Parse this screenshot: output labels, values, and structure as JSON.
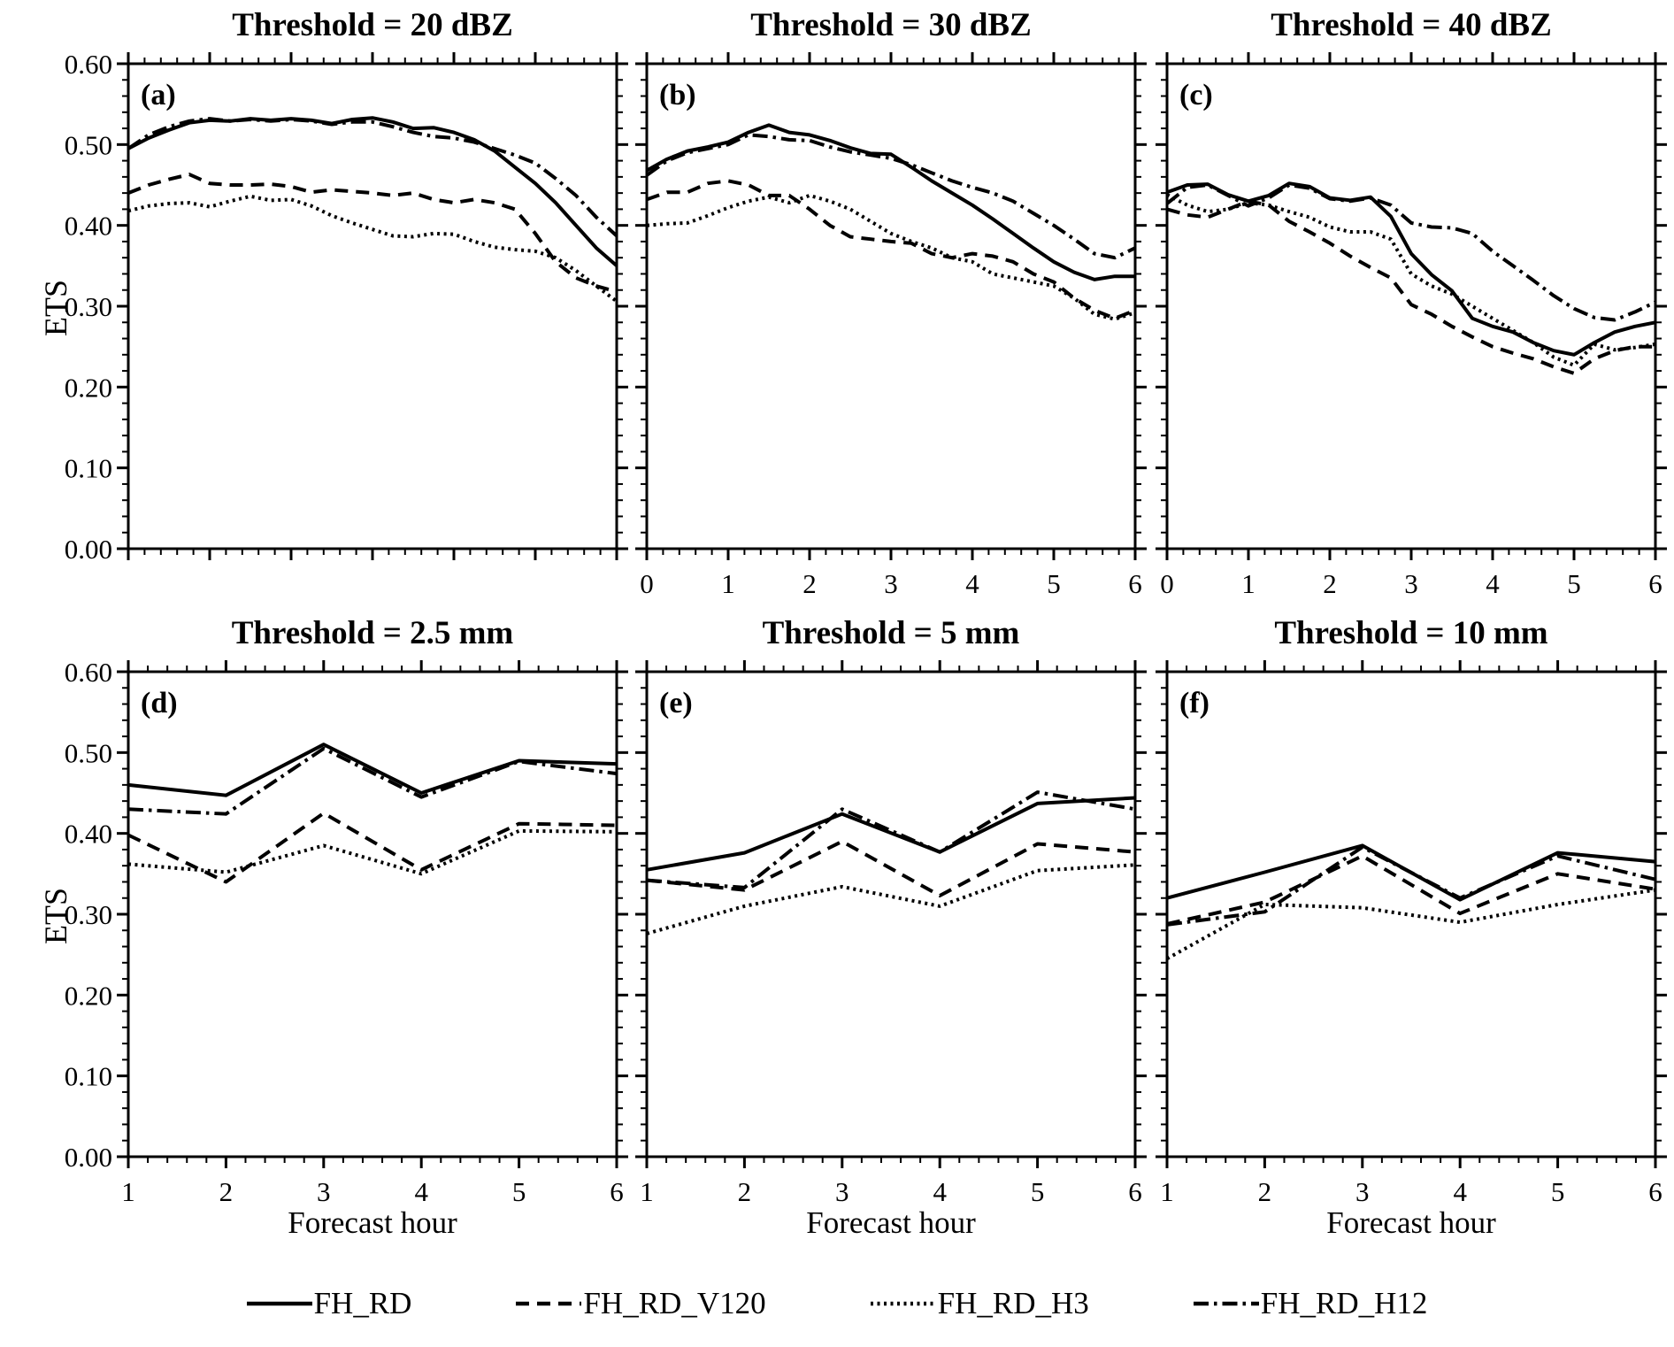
{
  "figure": {
    "ylabel": "ETS",
    "xlabel": "Forecast hour",
    "background_color": "#ffffff",
    "line_color": "#000000"
  },
  "legend": {
    "items": [
      {
        "name": "FH_RD",
        "style": "solid"
      },
      {
        "name": "FH_RD_V120",
        "style": "dashed"
      },
      {
        "name": "FH_RD_H3",
        "style": "dotted"
      },
      {
        "name": "FH_RD_H12",
        "style": "dashdot"
      }
    ]
  },
  "chart_data": [
    {
      "id": "a",
      "type": "line",
      "label": "(a)",
      "title": "Threshold = 20 dBZ",
      "xlim": [
        0,
        6
      ],
      "ylim": [
        0,
        0.6
      ],
      "x_major_ticks": [
        0,
        1,
        2,
        3,
        4,
        5,
        6
      ],
      "x_tick_labels": [],
      "x_minor_step": 0.2,
      "y_major_ticks": [
        0,
        0.1,
        0.2,
        0.3,
        0.4,
        0.5,
        0.6
      ],
      "y_tick_labels": [
        "0.00",
        "0.10",
        "0.20",
        "0.30",
        "0.40",
        "0.50",
        "0.60"
      ],
      "show_y_tick_labels": true,
      "y_minor_step": 0.02,
      "x": [
        0,
        0.25,
        0.5,
        0.75,
        1,
        1.25,
        1.5,
        1.75,
        2,
        2.25,
        2.5,
        2.75,
        3,
        3.25,
        3.5,
        3.75,
        4,
        4.25,
        4.5,
        4.75,
        5,
        5.25,
        5.5,
        5.75,
        6
      ],
      "series": [
        {
          "name": "FH_RD",
          "style": "solid",
          "values": [
            0.495,
            0.508,
            0.518,
            0.527,
            0.53,
            0.529,
            0.532,
            0.53,
            0.532,
            0.53,
            0.526,
            0.531,
            0.533,
            0.528,
            0.52,
            0.521,
            0.515,
            0.506,
            0.492,
            0.472,
            0.452,
            0.428,
            0.4,
            0.372,
            0.35
          ]
        },
        {
          "name": "FH_RD_V120",
          "style": "dashed",
          "values": [
            0.44,
            0.45,
            0.457,
            0.463,
            0.452,
            0.45,
            0.45,
            0.451,
            0.448,
            0.441,
            0.444,
            0.442,
            0.44,
            0.437,
            0.44,
            0.432,
            0.428,
            0.432,
            0.428,
            0.42,
            0.39,
            0.355,
            0.335,
            0.325,
            0.318
          ]
        },
        {
          "name": "FH_RD_H3",
          "style": "dotted",
          "values": [
            0.418,
            0.424,
            0.427,
            0.428,
            0.423,
            0.43,
            0.436,
            0.431,
            0.432,
            0.424,
            0.412,
            0.403,
            0.395,
            0.387,
            0.386,
            0.39,
            0.389,
            0.38,
            0.373,
            0.37,
            0.368,
            0.36,
            0.344,
            0.325,
            0.306
          ]
        },
        {
          "name": "FH_RD_H12",
          "style": "dashdot",
          "values": [
            0.495,
            0.512,
            0.522,
            0.529,
            0.532,
            0.529,
            0.531,
            0.529,
            0.531,
            0.529,
            0.525,
            0.528,
            0.528,
            0.522,
            0.515,
            0.51,
            0.508,
            0.503,
            0.495,
            0.487,
            0.477,
            0.458,
            0.437,
            0.41,
            0.387
          ]
        }
      ]
    },
    {
      "id": "b",
      "type": "line",
      "label": "(b)",
      "title": "Threshold = 30 dBZ",
      "xlim": [
        0,
        6
      ],
      "ylim": [
        0,
        0.6
      ],
      "x_major_ticks": [
        0,
        1,
        2,
        3,
        4,
        5,
        6
      ],
      "x_tick_labels": [
        "0",
        "1",
        "2",
        "3",
        "4",
        "5",
        "6"
      ],
      "x_minor_step": 0.2,
      "y_major_ticks": [
        0,
        0.1,
        0.2,
        0.3,
        0.4,
        0.5,
        0.6
      ],
      "y_tick_labels": [
        "0.00",
        "0.10",
        "0.20",
        "0.30",
        "0.40",
        "0.50",
        "0.60"
      ],
      "show_y_tick_labels": false,
      "y_minor_step": 0.02,
      "x": [
        0,
        0.25,
        0.5,
        0.75,
        1,
        1.25,
        1.5,
        1.75,
        2,
        2.25,
        2.5,
        2.75,
        3,
        3.25,
        3.5,
        3.75,
        4,
        4.25,
        4.5,
        4.75,
        5,
        5.25,
        5.5,
        5.75,
        6
      ],
      "series": [
        {
          "name": "FH_RD",
          "style": "solid",
          "values": [
            0.468,
            0.482,
            0.492,
            0.497,
            0.503,
            0.515,
            0.524,
            0.515,
            0.512,
            0.505,
            0.496,
            0.489,
            0.488,
            0.472,
            0.455,
            0.44,
            0.425,
            0.408,
            0.39,
            0.372,
            0.355,
            0.342,
            0.333,
            0.337,
            0.337
          ]
        },
        {
          "name": "FH_RD_V120",
          "style": "dashed",
          "values": [
            0.432,
            0.441,
            0.441,
            0.452,
            0.455,
            0.45,
            0.437,
            0.437,
            0.42,
            0.4,
            0.386,
            0.383,
            0.38,
            0.378,
            0.365,
            0.36,
            0.365,
            0.362,
            0.355,
            0.34,
            0.33,
            0.31,
            0.295,
            0.285,
            0.295
          ]
        },
        {
          "name": "FH_RD_H3",
          "style": "dotted",
          "values": [
            0.4,
            0.402,
            0.403,
            0.412,
            0.422,
            0.43,
            0.435,
            0.428,
            0.437,
            0.43,
            0.42,
            0.405,
            0.39,
            0.38,
            0.372,
            0.36,
            0.355,
            0.34,
            0.335,
            0.33,
            0.325,
            0.31,
            0.29,
            0.284,
            0.292
          ]
        },
        {
          "name": "FH_RD_H12",
          "style": "dashdot",
          "values": [
            0.462,
            0.48,
            0.49,
            0.495,
            0.5,
            0.512,
            0.51,
            0.506,
            0.505,
            0.497,
            0.491,
            0.487,
            0.483,
            0.475,
            0.465,
            0.455,
            0.447,
            0.44,
            0.43,
            0.415,
            0.4,
            0.383,
            0.365,
            0.36,
            0.372
          ]
        }
      ]
    },
    {
      "id": "c",
      "type": "line",
      "label": "(c)",
      "title": "Threshold = 40 dBZ",
      "xlim": [
        0,
        6
      ],
      "ylim": [
        0,
        0.6
      ],
      "x_major_ticks": [
        0,
        1,
        2,
        3,
        4,
        5,
        6
      ],
      "x_tick_labels": [
        "0",
        "1",
        "2",
        "3",
        "4",
        "5",
        "6"
      ],
      "x_minor_step": 0.2,
      "y_major_ticks": [
        0,
        0.1,
        0.2,
        0.3,
        0.4,
        0.5,
        0.6
      ],
      "y_tick_labels": [
        "0.00",
        "0.10",
        "0.20",
        "0.30",
        "0.40",
        "0.50",
        "0.60"
      ],
      "show_y_tick_labels": false,
      "y_minor_step": 0.02,
      "x": [
        0,
        0.25,
        0.5,
        0.75,
        1,
        1.25,
        1.5,
        1.75,
        2,
        2.25,
        2.5,
        2.75,
        3,
        3.25,
        3.5,
        3.75,
        4,
        4.25,
        4.5,
        4.75,
        5,
        5.25,
        5.5,
        5.75,
        6
      ],
      "series": [
        {
          "name": "FH_RD",
          "style": "solid",
          "values": [
            0.441,
            0.45,
            0.451,
            0.438,
            0.43,
            0.437,
            0.452,
            0.448,
            0.434,
            0.431,
            0.435,
            0.411,
            0.365,
            0.339,
            0.319,
            0.285,
            0.275,
            0.268,
            0.255,
            0.245,
            0.24,
            0.255,
            0.268,
            0.275,
            0.28
          ]
        },
        {
          "name": "FH_RD_V120",
          "style": "dashed",
          "values": [
            0.42,
            0.413,
            0.41,
            0.42,
            0.43,
            0.425,
            0.405,
            0.392,
            0.378,
            0.362,
            0.348,
            0.335,
            0.302,
            0.29,
            0.275,
            0.262,
            0.25,
            0.242,
            0.235,
            0.225,
            0.217,
            0.235,
            0.245,
            0.25,
            0.25
          ]
        },
        {
          "name": "FH_RD_H3",
          "style": "dotted",
          "values": [
            0.438,
            0.425,
            0.417,
            0.42,
            0.428,
            0.425,
            0.417,
            0.41,
            0.398,
            0.392,
            0.392,
            0.383,
            0.34,
            0.325,
            0.315,
            0.3,
            0.285,
            0.27,
            0.255,
            0.237,
            0.227,
            0.253,
            0.246,
            0.249,
            0.253
          ]
        },
        {
          "name": "FH_RD_H12",
          "style": "dashdot",
          "values": [
            0.427,
            0.447,
            0.45,
            0.437,
            0.424,
            0.434,
            0.45,
            0.446,
            0.433,
            0.43,
            0.434,
            0.425,
            0.403,
            0.398,
            0.397,
            0.39,
            0.368,
            0.35,
            0.332,
            0.313,
            0.297,
            0.286,
            0.283,
            0.293,
            0.305
          ]
        }
      ]
    },
    {
      "id": "d",
      "type": "line",
      "label": "(d)",
      "title": "Threshold = 2.5 mm",
      "xlim": [
        1,
        6
      ],
      "ylim": [
        0,
        0.6
      ],
      "x_major_ticks": [
        1,
        2,
        3,
        4,
        5,
        6
      ],
      "x_tick_labels": [
        "1",
        "2",
        "3",
        "4",
        "5",
        "6"
      ],
      "x_minor_step": 0.2,
      "y_major_ticks": [
        0,
        0.1,
        0.2,
        0.3,
        0.4,
        0.5,
        0.6
      ],
      "y_tick_labels": [
        "0.00",
        "0.10",
        "0.20",
        "0.30",
        "0.40",
        "0.50",
        "0.60"
      ],
      "show_y_tick_labels": true,
      "y_minor_step": 0.02,
      "x": [
        1,
        2,
        3,
        4,
        5,
        6
      ],
      "series": [
        {
          "name": "FH_RD",
          "style": "solid",
          "values": [
            0.46,
            0.447,
            0.51,
            0.45,
            0.49,
            0.486
          ]
        },
        {
          "name": "FH_RD_V120",
          "style": "dashed",
          "values": [
            0.398,
            0.34,
            0.425,
            0.355,
            0.412,
            0.41
          ]
        },
        {
          "name": "FH_RD_H3",
          "style": "dotted",
          "values": [
            0.362,
            0.352,
            0.385,
            0.35,
            0.403,
            0.402
          ]
        },
        {
          "name": "FH_RD_H12",
          "style": "dashdot",
          "values": [
            0.43,
            0.424,
            0.505,
            0.445,
            0.489,
            0.474
          ]
        }
      ]
    },
    {
      "id": "e",
      "type": "line",
      "label": "(e)",
      "title": "Threshold = 5 mm",
      "xlim": [
        1,
        6
      ],
      "ylim": [
        0,
        0.6
      ],
      "x_major_ticks": [
        1,
        2,
        3,
        4,
        5,
        6
      ],
      "x_tick_labels": [
        "1",
        "2",
        "3",
        "4",
        "5",
        "6"
      ],
      "x_minor_step": 0.2,
      "y_major_ticks": [
        0,
        0.1,
        0.2,
        0.3,
        0.4,
        0.5,
        0.6
      ],
      "y_tick_labels": [
        "0.00",
        "0.10",
        "0.20",
        "0.30",
        "0.40",
        "0.50",
        "0.60"
      ],
      "show_y_tick_labels": false,
      "y_minor_step": 0.02,
      "x": [
        1,
        2,
        3,
        4,
        5,
        6
      ],
      "series": [
        {
          "name": "FH_RD",
          "style": "solid",
          "values": [
            0.355,
            0.376,
            0.424,
            0.377,
            0.437,
            0.444
          ]
        },
        {
          "name": "FH_RD_V120",
          "style": "dashed",
          "values": [
            0.342,
            0.33,
            0.39,
            0.323,
            0.387,
            0.377
          ]
        },
        {
          "name": "FH_RD_H3",
          "style": "dotted",
          "values": [
            0.276,
            0.31,
            0.334,
            0.31,
            0.354,
            0.361
          ]
        },
        {
          "name": "FH_RD_H12",
          "style": "dashdot",
          "values": [
            0.342,
            0.333,
            0.43,
            0.377,
            0.451,
            0.43
          ]
        }
      ]
    },
    {
      "id": "f",
      "type": "line",
      "label": "(f)",
      "title": "Threshold = 10 mm",
      "xlim": [
        1,
        6
      ],
      "ylim": [
        0,
        0.6
      ],
      "x_major_ticks": [
        1,
        2,
        3,
        4,
        5,
        6
      ],
      "x_tick_labels": [
        "1",
        "2",
        "3",
        "4",
        "5",
        "6"
      ],
      "x_minor_step": 0.2,
      "y_major_ticks": [
        0,
        0.1,
        0.2,
        0.3,
        0.4,
        0.5,
        0.6
      ],
      "y_tick_labels": [
        "0.00",
        "0.10",
        "0.20",
        "0.30",
        "0.40",
        "0.50",
        "0.60"
      ],
      "show_y_tick_labels": false,
      "y_minor_step": 0.02,
      "x": [
        1,
        2,
        3,
        4,
        5,
        6
      ],
      "series": [
        {
          "name": "FH_RD",
          "style": "solid",
          "values": [
            0.32,
            0.352,
            0.385,
            0.318,
            0.376,
            0.365
          ]
        },
        {
          "name": "FH_RD_V120",
          "style": "dashed",
          "values": [
            0.288,
            0.315,
            0.372,
            0.301,
            0.35,
            0.331
          ]
        },
        {
          "name": "FH_RD_H3",
          "style": "dotted",
          "values": [
            0.245,
            0.312,
            0.308,
            0.29,
            0.312,
            0.33
          ]
        },
        {
          "name": "FH_RD_H12",
          "style": "dashdot",
          "values": [
            0.287,
            0.303,
            0.383,
            0.32,
            0.372,
            0.343
          ]
        }
      ]
    }
  ]
}
